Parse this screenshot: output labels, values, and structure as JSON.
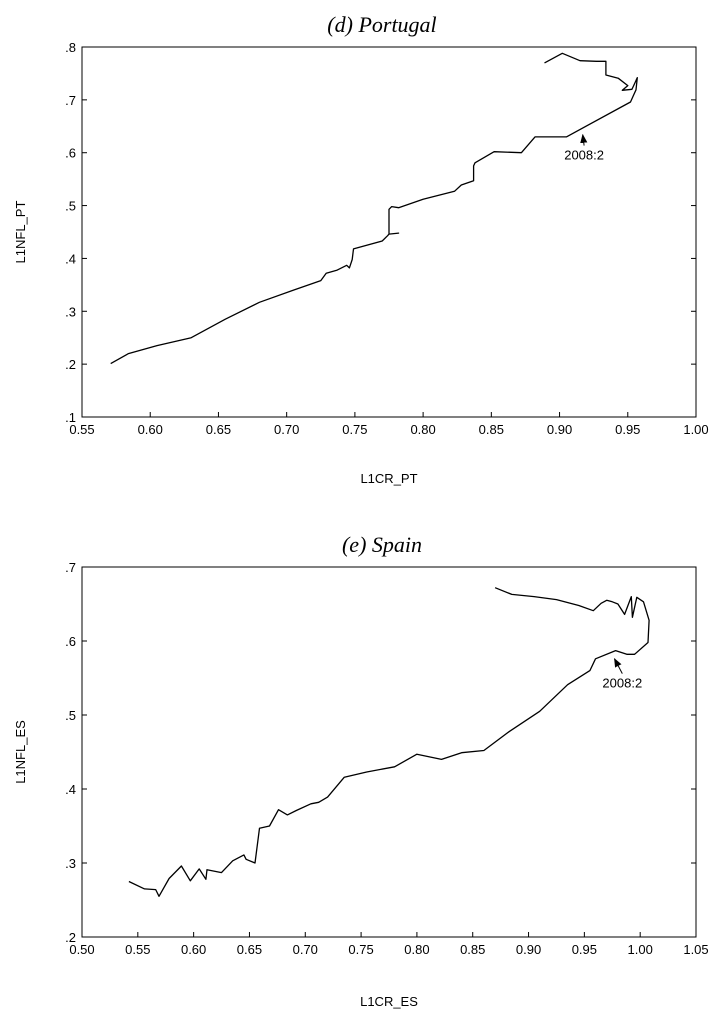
{
  "chart_data": [
    {
      "type": "line",
      "title": "(d)  Portugal",
      "xlabel": "L1CR_PT",
      "ylabel": "L1NFL_PT",
      "xlim": [
        0.55,
        1.0
      ],
      "ylim": [
        0.1,
        0.8
      ],
      "grid": false,
      "xticks": [
        0.55,
        0.6,
        0.65,
        0.7,
        0.75,
        0.8,
        0.85,
        0.9,
        0.95,
        1.0
      ],
      "xtick_labels": [
        "0.55",
        "0.60",
        "0.65",
        "0.70",
        "0.75",
        "0.80",
        "0.85",
        "0.90",
        "0.95",
        "1.00"
      ],
      "yticks": [
        0.1,
        0.2,
        0.3,
        0.4,
        0.5,
        0.6,
        0.7,
        0.8
      ],
      "ytick_labels": [
        ".1",
        ".2",
        ".3",
        ".4",
        ".5",
        ".6",
        ".7",
        ".8"
      ],
      "series": [
        {
          "x": [
            0.571,
            0.584,
            0.605,
            0.63,
            0.655,
            0.68,
            0.705,
            0.725,
            0.729,
            0.737,
            0.744,
            0.746,
            0.748,
            0.749,
            0.77,
            0.774,
            0.775,
            0.782,
            0.775,
            0.775,
            0.777,
            0.782,
            0.8,
            0.823,
            0.828,
            0.837,
            0.837,
            0.838,
            0.852,
            0.872,
            0.882,
            0.905,
            0.952,
            0.956,
            0.957,
            0.954,
            0.953,
            0.946,
            0.95,
            0.943,
            0.934,
            0.934,
            0.927,
            0.915,
            0.902,
            0.889
          ],
          "y": [
            0.201,
            0.22,
            0.235,
            0.25,
            0.285,
            0.317,
            0.34,
            0.358,
            0.372,
            0.378,
            0.387,
            0.382,
            0.398,
            0.418,
            0.433,
            0.443,
            0.446,
            0.448,
            0.446,
            0.493,
            0.498,
            0.496,
            0.512,
            0.527,
            0.539,
            0.547,
            0.575,
            0.581,
            0.602,
            0.6,
            0.63,
            0.63,
            0.696,
            0.719,
            0.742,
            0.725,
            0.72,
            0.718,
            0.727,
            0.741,
            0.747,
            0.773,
            0.773,
            0.774,
            0.788,
            0.77
          ]
        }
      ],
      "annotations": [
        {
          "text": "2008:2",
          "xy": [
            0.917,
            0.634
          ],
          "xytext": [
            0.918,
            0.587
          ]
        }
      ]
    },
    {
      "type": "line",
      "title": "(e)  Spain",
      "xlabel": "L1CR_ES",
      "ylabel": "L1NFL_ES",
      "xlim": [
        0.5,
        1.05
      ],
      "ylim": [
        0.2,
        0.7
      ],
      "grid": false,
      "xticks": [
        0.5,
        0.55,
        0.6,
        0.65,
        0.7,
        0.75,
        0.8,
        0.85,
        0.9,
        0.95,
        1.0,
        1.05
      ],
      "xtick_labels": [
        "0.50",
        "0.55",
        "0.60",
        "0.65",
        "0.70",
        "0.75",
        "0.80",
        "0.85",
        "0.90",
        "0.95",
        "1.00",
        "1.05"
      ],
      "yticks": [
        0.2,
        0.3,
        0.4,
        0.5,
        0.6,
        0.7
      ],
      "ytick_labels": [
        ".2",
        ".3",
        ".4",
        ".5",
        ".6",
        ".7"
      ],
      "series": [
        {
          "x": [
            0.542,
            0.556,
            0.566,
            0.569,
            0.578,
            0.589,
            0.597,
            0.605,
            0.611,
            0.612,
            0.625,
            0.635,
            0.645,
            0.647,
            0.655,
            0.659,
            0.668,
            0.676,
            0.684,
            0.692,
            0.705,
            0.712,
            0.72,
            0.735,
            0.755,
            0.78,
            0.8,
            0.822,
            0.84,
            0.86,
            0.883,
            0.91,
            0.935,
            0.955,
            0.96,
            0.978,
            0.988,
            0.995,
            1.007,
            1.008,
            1.003,
            0.997,
            0.993,
            0.992,
            0.986,
            0.98,
            0.975,
            0.97,
            0.965,
            0.958,
            0.945,
            0.925,
            0.905,
            0.885,
            0.87
          ],
          "y": [
            0.275,
            0.265,
            0.264,
            0.255,
            0.279,
            0.296,
            0.276,
            0.292,
            0.278,
            0.291,
            0.287,
            0.303,
            0.311,
            0.305,
            0.3,
            0.347,
            0.35,
            0.372,
            0.365,
            0.371,
            0.38,
            0.382,
            0.389,
            0.416,
            0.423,
            0.43,
            0.447,
            0.44,
            0.449,
            0.452,
            0.478,
            0.505,
            0.541,
            0.56,
            0.576,
            0.587,
            0.582,
            0.582,
            0.598,
            0.628,
            0.653,
            0.659,
            0.632,
            0.66,
            0.636,
            0.65,
            0.653,
            0.655,
            0.651,
            0.641,
            0.648,
            0.656,
            0.66,
            0.663,
            0.672
          ]
        }
      ],
      "annotations": [
        {
          "text": "2008:2",
          "xy": [
            0.977,
            0.576
          ],
          "xytext": [
            0.984,
            0.537
          ]
        }
      ]
    }
  ]
}
